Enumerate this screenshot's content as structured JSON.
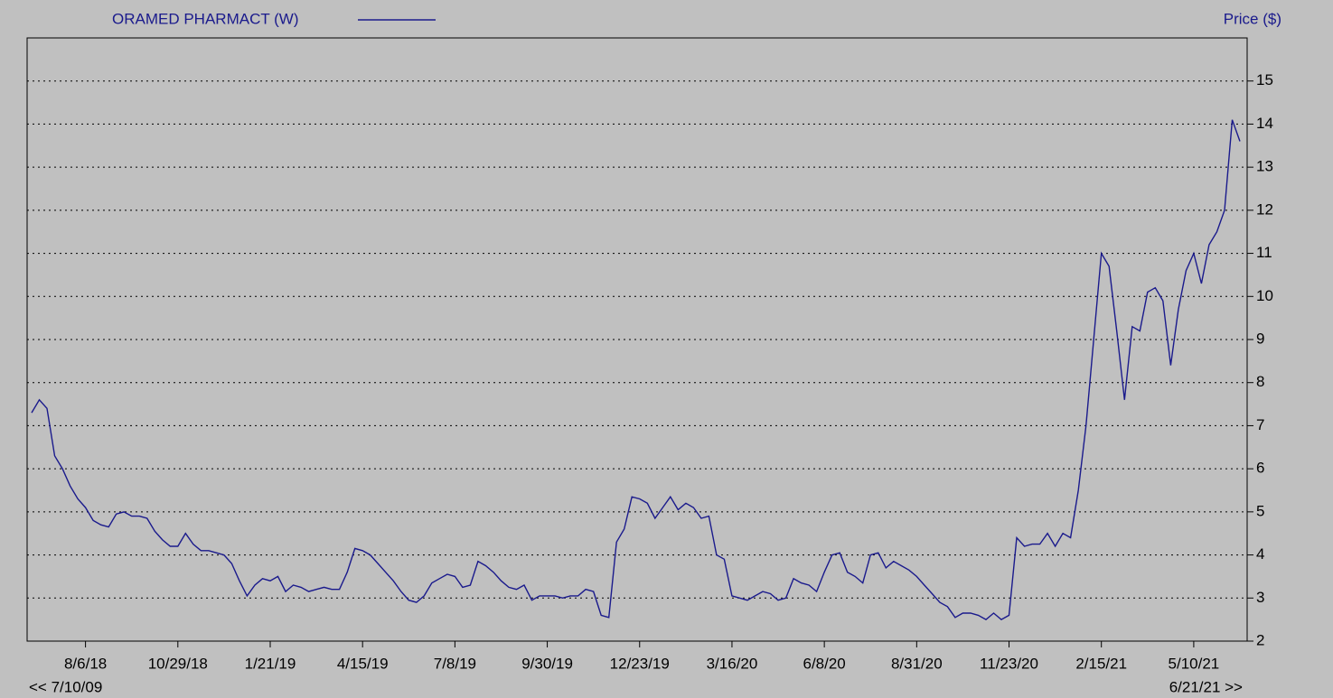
{
  "chart_data": {
    "type": "line",
    "legend_corner": "top-left",
    "y_axis_side": "right",
    "y_label": "Price ($)",
    "nav_labels": [
      "<< 7/10/09",
      "6/21/21 >>"
    ],
    "grid": true,
    "x": [
      "6/18/18",
      "6/25/18",
      "7/2/18",
      "7/9/18",
      "7/16/18",
      "7/23/18",
      "7/30/18",
      "8/6/18",
      "8/13/18",
      "8/20/18",
      "8/27/18",
      "9/3/18",
      "9/10/18",
      "9/17/18",
      "9/24/18",
      "10/1/18",
      "10/8/18",
      "10/15/18",
      "10/22/18",
      "10/29/18",
      "11/5/18",
      "11/12/18",
      "11/19/18",
      "11/26/18",
      "12/3/18",
      "12/10/18",
      "12/17/18",
      "12/24/18",
      "12/31/18",
      "1/7/19",
      "1/14/19",
      "1/21/19",
      "1/28/19",
      "2/4/19",
      "2/11/19",
      "2/18/19",
      "2/25/19",
      "3/4/19",
      "3/11/19",
      "3/18/19",
      "3/25/19",
      "4/1/19",
      "4/8/19",
      "4/15/19",
      "4/22/19",
      "4/29/19",
      "5/6/19",
      "5/13/19",
      "5/20/19",
      "5/27/19",
      "6/3/19",
      "6/10/19",
      "6/17/19",
      "6/24/19",
      "7/1/19",
      "7/8/19",
      "7/15/19",
      "7/22/19",
      "7/29/19",
      "8/5/19",
      "8/12/19",
      "8/19/19",
      "8/26/19",
      "9/2/19",
      "9/9/19",
      "9/16/19",
      "9/23/19",
      "9/30/19",
      "10/7/19",
      "10/14/19",
      "10/21/19",
      "10/28/19",
      "11/4/19",
      "11/11/19",
      "11/18/19",
      "11/25/19",
      "12/2/19",
      "12/9/19",
      "12/16/19",
      "12/23/19",
      "12/30/19",
      "1/6/20",
      "1/13/20",
      "1/20/20",
      "1/27/20",
      "2/3/20",
      "2/10/20",
      "2/17/20",
      "2/24/20",
      "3/2/20",
      "3/9/20",
      "3/16/20",
      "3/23/20",
      "3/30/20",
      "4/6/20",
      "4/13/20",
      "4/20/20",
      "4/27/20",
      "5/4/20",
      "5/11/20",
      "5/18/20",
      "5/25/20",
      "6/1/20",
      "6/8/20",
      "6/15/20",
      "6/22/20",
      "6/29/20",
      "7/6/20",
      "7/13/20",
      "7/20/20",
      "7/27/20",
      "8/3/20",
      "8/10/20",
      "8/17/20",
      "8/24/20",
      "8/31/20",
      "9/7/20",
      "9/14/20",
      "9/21/20",
      "9/28/20",
      "10/5/20",
      "10/12/20",
      "10/19/20",
      "10/26/20",
      "11/2/20",
      "11/9/20",
      "11/16/20",
      "11/23/20",
      "11/30/20",
      "12/7/20",
      "12/14/20",
      "12/21/20",
      "12/28/20",
      "1/4/21",
      "1/11/21",
      "1/18/21",
      "1/25/21",
      "2/1/21",
      "2/8/21",
      "2/15/21",
      "2/22/21",
      "3/1/21",
      "3/8/21",
      "3/15/21",
      "3/22/21",
      "3/29/21",
      "4/5/21",
      "4/12/21",
      "4/19/21",
      "4/26/21",
      "5/3/21",
      "5/10/21",
      "5/17/21",
      "5/24/21",
      "5/31/21",
      "6/7/21",
      "6/14/21",
      "6/21/21"
    ],
    "series": [
      {
        "name": "ORAMED PHARMACT (W)",
        "color": "#1a1a8c",
        "values": [
          7.3,
          7.6,
          7.4,
          6.3,
          6.0,
          5.6,
          5.3,
          5.1,
          4.8,
          4.7,
          4.65,
          4.95,
          5.0,
          4.9,
          4.9,
          4.85,
          4.55,
          4.35,
          4.2,
          4.2,
          4.5,
          4.25,
          4.1,
          4.1,
          4.05,
          4.0,
          3.8,
          3.4,
          3.05,
          3.3,
          3.45,
          3.4,
          3.5,
          3.15,
          3.3,
          3.25,
          3.15,
          3.2,
          3.25,
          3.2,
          3.2,
          3.6,
          4.15,
          4.1,
          4.0,
          3.8,
          3.6,
          3.4,
          3.15,
          2.95,
          2.9,
          3.05,
          3.35,
          3.45,
          3.55,
          3.5,
          3.25,
          3.3,
          3.85,
          3.75,
          3.6,
          3.4,
          3.25,
          3.2,
          3.3,
          2.95,
          3.05,
          3.05,
          3.05,
          3.0,
          3.05,
          3.05,
          3.2,
          3.15,
          2.6,
          2.55,
          4.3,
          4.6,
          5.35,
          5.3,
          5.2,
          4.85,
          5.1,
          5.35,
          5.05,
          5.2,
          5.1,
          4.85,
          4.9,
          4.0,
          3.9,
          3.05,
          3.0,
          2.95,
          3.05,
          3.15,
          3.1,
          2.95,
          3.0,
          3.45,
          3.35,
          3.3,
          3.15,
          3.6,
          4.0,
          4.05,
          3.6,
          3.5,
          3.35,
          4.0,
          4.05,
          3.7,
          3.85,
          3.75,
          3.65,
          3.5,
          3.3,
          3.1,
          2.9,
          2.8,
          2.55,
          2.65,
          2.65,
          2.6,
          2.5,
          2.65,
          2.5,
          2.6,
          4.4,
          4.2,
          4.25,
          4.25,
          4.5,
          4.2,
          4.5,
          4.4,
          5.5,
          7.0,
          9.0,
          11.0,
          10.7,
          9.2,
          7.6,
          9.3,
          9.2,
          10.1,
          10.2,
          9.9,
          8.4,
          9.7,
          10.6,
          11.0,
          10.3,
          11.2,
          11.5,
          12.0,
          14.1,
          13.6
        ]
      }
    ],
    "xticks": [
      "8/6/18",
      "10/29/18",
      "1/21/19",
      "4/15/19",
      "7/8/19",
      "9/30/19",
      "12/23/19",
      "3/16/20",
      "6/8/20",
      "8/31/20",
      "11/23/20",
      "2/15/21",
      "5/10/21"
    ],
    "ylim": [
      2,
      16
    ],
    "yticks": [
      2,
      3,
      4,
      5,
      6,
      7,
      8,
      9,
      10,
      11,
      12,
      13,
      14,
      15
    ]
  }
}
